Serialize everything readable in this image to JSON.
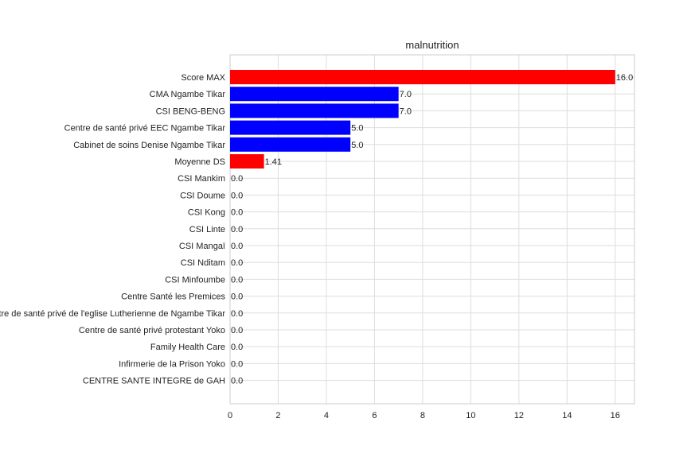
{
  "chart_data": {
    "type": "bar",
    "orientation": "horizontal",
    "title": "malnutrition",
    "xlabel": "",
    "ylabel": "",
    "xlim": [
      0,
      16.8
    ],
    "xticks": [
      0,
      2,
      4,
      6,
      8,
      10,
      12,
      14,
      16
    ],
    "grid": true,
    "legend": "none",
    "colors": {
      "max": "#ff0000",
      "average": "#ff0000",
      "facility": "#0000ff"
    },
    "categories": [
      "Score MAX",
      "CMA Ngambe Tikar",
      "CSI BENG-BENG",
      "Centre de santé privé EEC Ngambe Tikar",
      "Cabinet de soins Denise Ngambe Tikar",
      "Moyenne DS",
      "CSI Mankim",
      "CSI Doume",
      "CSI Kong",
      "CSI Linte",
      "CSI Mangaï",
      "CSI Nditam",
      "CSI Minfoumbe",
      "Centre Santé les Premices",
      "Centre de santé privé  de l'eglise Lutherienne de Ngambe Tikar",
      "Centre de santé privé protestant Yoko",
      "Family Health Care",
      "Infirmerie de la Prison Yoko",
      "CENTRE SANTE INTEGRE  de GAH"
    ],
    "values": [
      16.0,
      7.0,
      7.0,
      5.0,
      5.0,
      1.41,
      0.0,
      0.0,
      0.0,
      0.0,
      0.0,
      0.0,
      0.0,
      0.0,
      0.0,
      0.0,
      0.0,
      0.0,
      0.0
    ],
    "value_labels": [
      "16.0",
      "7.0",
      "7.0",
      "5.0",
      "5.0",
      "1.41",
      "0.0",
      "0.0",
      "0.0",
      "0.0",
      "0.0",
      "0.0",
      "0.0",
      "0.0",
      "0.0",
      "0.0",
      "0.0",
      "0.0",
      "0.0"
    ],
    "bar_colors": [
      "#ff0000",
      "#0000ff",
      "#0000ff",
      "#0000ff",
      "#0000ff",
      "#ff0000",
      "#0000ff",
      "#0000ff",
      "#0000ff",
      "#0000ff",
      "#0000ff",
      "#0000ff",
      "#0000ff",
      "#0000ff",
      "#0000ff",
      "#0000ff",
      "#0000ff",
      "#0000ff",
      "#0000ff"
    ]
  }
}
